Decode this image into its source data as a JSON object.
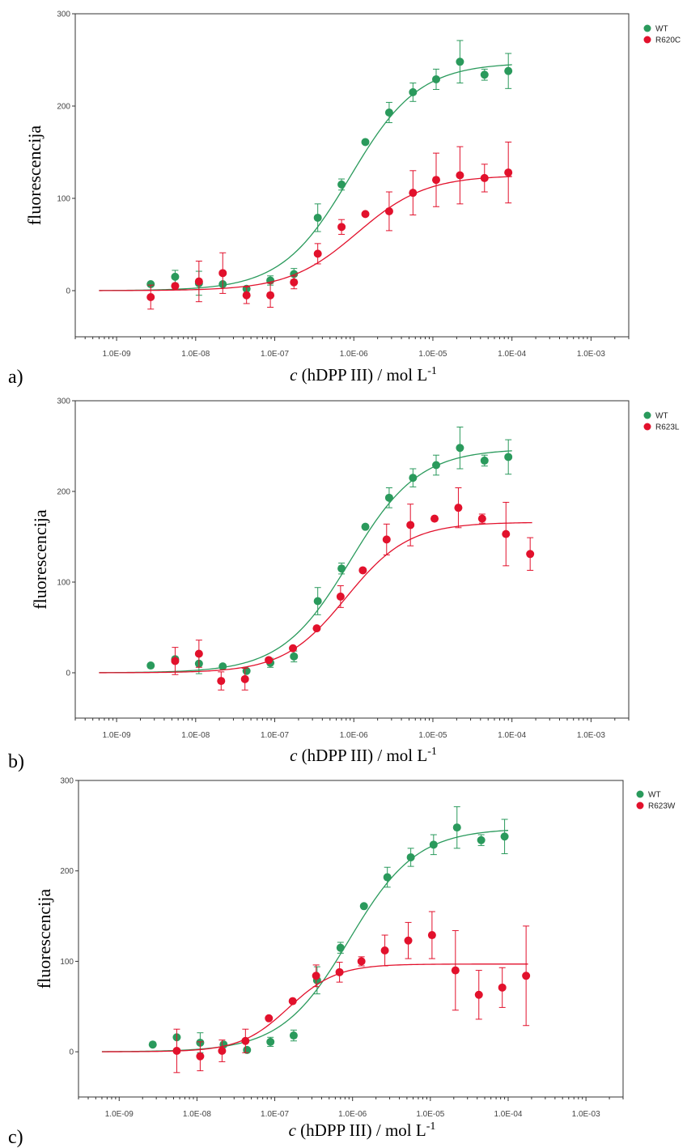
{
  "colors": {
    "wt": "#2a9a5c",
    "mutant": "#e2112c",
    "axis": "#333333"
  },
  "chart_data": [
    {
      "type": "scatter",
      "panel_label": "a)",
      "ylabel": "fluorescencija",
      "xlabel_italic": "c",
      "xlabel_rest": " (hDPP III) / mol L",
      "xlabel_sup": "-1",
      "x_scale": "log",
      "xlim": [
        3e-10,
        0.003
      ],
      "ylim": [
        -50,
        300
      ],
      "xticks": [
        1e-09,
        1e-08,
        1e-07,
        1e-06,
        1e-05,
        0.0001,
        0.001
      ],
      "xtick_labels": [
        "1.0E-09",
        "1.0E-08",
        "1.0E-07",
        "1.0E-06",
        "1.0E-05",
        "1.0E-04",
        "1.0E-03"
      ],
      "yticks": [
        0,
        100,
        200,
        300
      ],
      "ytick_labels": [
        "0",
        "100",
        "200",
        "300"
      ],
      "series": [
        {
          "name": "WT",
          "color_key": "wt",
          "fit": {
            "bottom": 0,
            "top": 247,
            "ec50": 9e-07,
            "hill": 1,
            "x_start": 6e-10,
            "x_end": 0.0001
          },
          "points": [
            {
              "x": 2.7e-09,
              "y": 7,
              "err": 0
            },
            {
              "x": 5.5e-09,
              "y": 15,
              "err": 7
            },
            {
              "x": 1.1e-08,
              "y": 8,
              "err": 13
            },
            {
              "x": 2.2e-08,
              "y": 7,
              "err": 0
            },
            {
              "x": 4.4e-08,
              "y": 2,
              "err": 0
            },
            {
              "x": 8.8e-08,
              "y": 11,
              "err": 5
            },
            {
              "x": 1.75e-07,
              "y": 18,
              "err": 6
            },
            {
              "x": 3.5e-07,
              "y": 79,
              "err": 15
            },
            {
              "x": 7e-07,
              "y": 115,
              "err": 6
            },
            {
              "x": 1.4e-06,
              "y": 161,
              "err": 0
            },
            {
              "x": 2.8e-06,
              "y": 193,
              "err": 11
            },
            {
              "x": 5.6e-06,
              "y": 215,
              "err": 10
            },
            {
              "x": 1.1e-05,
              "y": 229,
              "err": 11
            },
            {
              "x": 2.2e-05,
              "y": 248,
              "err": 23
            },
            {
              "x": 4.5e-05,
              "y": 234,
              "err": 6
            },
            {
              "x": 9e-05,
              "y": 238,
              "err": 19
            }
          ]
        },
        {
          "name": "R620C",
          "color_key": "mutant",
          "fit": {
            "bottom": 0,
            "top": 125,
            "ec50": 1.1e-06,
            "hill": 1,
            "x_start": 6e-10,
            "x_end": 0.0001
          },
          "points": [
            {
              "x": 2.7e-09,
              "y": -7,
              "err": 13
            },
            {
              "x": 5.5e-09,
              "y": 5,
              "err": 0
            },
            {
              "x": 1.1e-08,
              "y": 10,
              "err": 22
            },
            {
              "x": 2.2e-08,
              "y": 19,
              "err": 22
            },
            {
              "x": 4.4e-08,
              "y": -5,
              "err": 9
            },
            {
              "x": 8.8e-08,
              "y": -5,
              "err": 13
            },
            {
              "x": 1.75e-07,
              "y": 9,
              "err": 7
            },
            {
              "x": 3.5e-07,
              "y": 40,
              "err": 11
            },
            {
              "x": 7e-07,
              "y": 69,
              "err": 8
            },
            {
              "x": 1.4e-06,
              "y": 83,
              "err": 0
            },
            {
              "x": 2.8e-06,
              "y": 86,
              "err": 21
            },
            {
              "x": 5.6e-06,
              "y": 106,
              "err": 24
            },
            {
              "x": 1.1e-05,
              "y": 120,
              "err": 29
            },
            {
              "x": 2.2e-05,
              "y": 125,
              "err": 31
            },
            {
              "x": 4.5e-05,
              "y": 122,
              "err": 15
            },
            {
              "x": 9e-05,
              "y": 128,
              "err": 33
            }
          ]
        }
      ]
    },
    {
      "type": "scatter",
      "panel_label": "b)",
      "ylabel": "fluorescencija",
      "xlabel_italic": "c",
      "xlabel_rest": " (hDPP III) / mol L",
      "xlabel_sup": "-1",
      "x_scale": "log",
      "xlim": [
        3e-10,
        0.003
      ],
      "ylim": [
        -50,
        300
      ],
      "xticks": [
        1e-09,
        1e-08,
        1e-07,
        1e-06,
        1e-05,
        0.0001,
        0.001
      ],
      "xtick_labels": [
        "1.0E-09",
        "1.0E-08",
        "1.0E-07",
        "1.0E-06",
        "1.0E-05",
        "1.0E-04",
        "1.0E-03"
      ],
      "yticks": [
        0,
        100,
        200,
        300
      ],
      "ytick_labels": [
        "0",
        "100",
        "200",
        "300"
      ],
      "series": [
        {
          "name": "WT",
          "color_key": "wt",
          "fit": {
            "bottom": 0,
            "top": 247,
            "ec50": 9e-07,
            "hill": 1,
            "x_start": 6e-10,
            "x_end": 0.0001
          },
          "points": [
            {
              "x": 2.7e-09,
              "y": 8,
              "err": 0
            },
            {
              "x": 5.5e-09,
              "y": 15,
              "err": 0
            },
            {
              "x": 1.1e-08,
              "y": 10,
              "err": 11
            },
            {
              "x": 2.2e-08,
              "y": 7,
              "err": 0
            },
            {
              "x": 4.4e-08,
              "y": 2,
              "err": 0
            },
            {
              "x": 8.8e-08,
              "y": 11,
              "err": 5
            },
            {
              "x": 1.75e-07,
              "y": 18,
              "err": 6
            },
            {
              "x": 3.5e-07,
              "y": 79,
              "err": 15
            },
            {
              "x": 7e-07,
              "y": 115,
              "err": 6
            },
            {
              "x": 1.4e-06,
              "y": 161,
              "err": 0
            },
            {
              "x": 2.8e-06,
              "y": 193,
              "err": 11
            },
            {
              "x": 5.6e-06,
              "y": 215,
              "err": 10
            },
            {
              "x": 1.1e-05,
              "y": 229,
              "err": 11
            },
            {
              "x": 2.2e-05,
              "y": 248,
              "err": 23
            },
            {
              "x": 4.5e-05,
              "y": 234,
              "err": 6
            },
            {
              "x": 9e-05,
              "y": 238,
              "err": 19
            }
          ]
        },
        {
          "name": "R623L",
          "color_key": "mutant",
          "fit": {
            "bottom": 0,
            "top": 166,
            "ec50": 8e-07,
            "hill": 1.1,
            "x_start": 6e-10,
            "x_end": 0.00018
          },
          "points": [
            {
              "x": 5.5e-09,
              "y": 13,
              "err": 15
            },
            {
              "x": 1.1e-08,
              "y": 21,
              "err": 15
            },
            {
              "x": 2.1e-08,
              "y": -9,
              "err": 10
            },
            {
              "x": 4.2e-08,
              "y": -7,
              "err": 12
            },
            {
              "x": 8.4e-08,
              "y": 14,
              "err": 0
            },
            {
              "x": 1.7e-07,
              "y": 27,
              "err": 0
            },
            {
              "x": 3.4e-07,
              "y": 49,
              "err": 0
            },
            {
              "x": 6.8e-07,
              "y": 84,
              "err": 12
            },
            {
              "x": 1.3e-06,
              "y": 113,
              "err": 0
            },
            {
              "x": 2.6e-06,
              "y": 147,
              "err": 17
            },
            {
              "x": 5.2e-06,
              "y": 163,
              "err": 23
            },
            {
              "x": 1.05e-05,
              "y": 170,
              "err": 0
            },
            {
              "x": 2.1e-05,
              "y": 182,
              "err": 22
            },
            {
              "x": 4.2e-05,
              "y": 170,
              "err": 5
            },
            {
              "x": 8.4e-05,
              "y": 153,
              "err": 35
            },
            {
              "x": 0.00017,
              "y": 131,
              "err": 18
            }
          ]
        }
      ]
    },
    {
      "type": "scatter",
      "panel_label": "c)",
      "ylabel": "fluorescencija",
      "xlabel_italic": "c",
      "xlabel_rest": " (hDPP III) / mol L",
      "xlabel_sup": "-1",
      "x_scale": "log",
      "xlim": [
        3e-10,
        0.003
      ],
      "ylim": [
        -50,
        300
      ],
      "xticks": [
        1e-09,
        1e-08,
        1e-07,
        1e-06,
        1e-05,
        0.0001,
        0.001
      ],
      "xtick_labels": [
        "1.0E-09",
        "1.0E-08",
        "1.0E-07",
        "1.0E-06",
        "1.0E-05",
        "1.0E-04",
        "1.0E-03"
      ],
      "yticks": [
        0,
        100,
        200,
        300
      ],
      "ytick_labels": [
        "0",
        "100",
        "200",
        "300"
      ],
      "series": [
        {
          "name": "WT",
          "color_key": "wt",
          "fit": {
            "bottom": 0,
            "top": 247,
            "ec50": 9e-07,
            "hill": 1,
            "x_start": 6e-10,
            "x_end": 0.0001
          },
          "points": [
            {
              "x": 2.7e-09,
              "y": 8,
              "err": 0
            },
            {
              "x": 5.5e-09,
              "y": 16,
              "err": 0
            },
            {
              "x": 1.1e-08,
              "y": 10,
              "err": 11
            },
            {
              "x": 2.2e-08,
              "y": 8,
              "err": 0
            },
            {
              "x": 4.4e-08,
              "y": 2,
              "err": 0
            },
            {
              "x": 8.8e-08,
              "y": 11,
              "err": 5
            },
            {
              "x": 1.75e-07,
              "y": 18,
              "err": 6
            },
            {
              "x": 3.5e-07,
              "y": 79,
              "err": 15
            },
            {
              "x": 7e-07,
              "y": 115,
              "err": 6
            },
            {
              "x": 1.4e-06,
              "y": 161,
              "err": 0
            },
            {
              "x": 2.8e-06,
              "y": 193,
              "err": 11
            },
            {
              "x": 5.6e-06,
              "y": 215,
              "err": 10
            },
            {
              "x": 1.1e-05,
              "y": 229,
              "err": 11
            },
            {
              "x": 2.2e-05,
              "y": 248,
              "err": 23
            },
            {
              "x": 4.5e-05,
              "y": 234,
              "err": 6
            },
            {
              "x": 9e-05,
              "y": 238,
              "err": 19
            }
          ]
        },
        {
          "name": "R623W",
          "color_key": "mutant",
          "fit": {
            "bottom": 0,
            "top": 97,
            "ec50": 1.5e-07,
            "hill": 1.4,
            "x_start": 6e-10,
            "x_end": 0.00018
          },
          "points": [
            {
              "x": 5.5e-09,
              "y": 1,
              "err": 24
            },
            {
              "x": 1.1e-08,
              "y": -5,
              "err": 16
            },
            {
              "x": 2.1e-08,
              "y": 1,
              "err": 12
            },
            {
              "x": 4.2e-08,
              "y": 12,
              "err": 13
            },
            {
              "x": 8.4e-08,
              "y": 37,
              "err": 0
            },
            {
              "x": 1.7e-07,
              "y": 56,
              "err": 0
            },
            {
              "x": 3.4e-07,
              "y": 84,
              "err": 12
            },
            {
              "x": 6.8e-07,
              "y": 88,
              "err": 11
            },
            {
              "x": 1.3e-06,
              "y": 100,
              "err": 5
            },
            {
              "x": 2.6e-06,
              "y": 112,
              "err": 17
            },
            {
              "x": 5.2e-06,
              "y": 123,
              "err": 20
            },
            {
              "x": 1.05e-05,
              "y": 129,
              "err": 26
            },
            {
              "x": 2.1e-05,
              "y": 90,
              "err": 44
            },
            {
              "x": 4.2e-05,
              "y": 63,
              "err": 27
            },
            {
              "x": 8.4e-05,
              "y": 71,
              "err": 22
            },
            {
              "x": 0.00017,
              "y": 84,
              "err": 55
            }
          ]
        }
      ]
    }
  ]
}
